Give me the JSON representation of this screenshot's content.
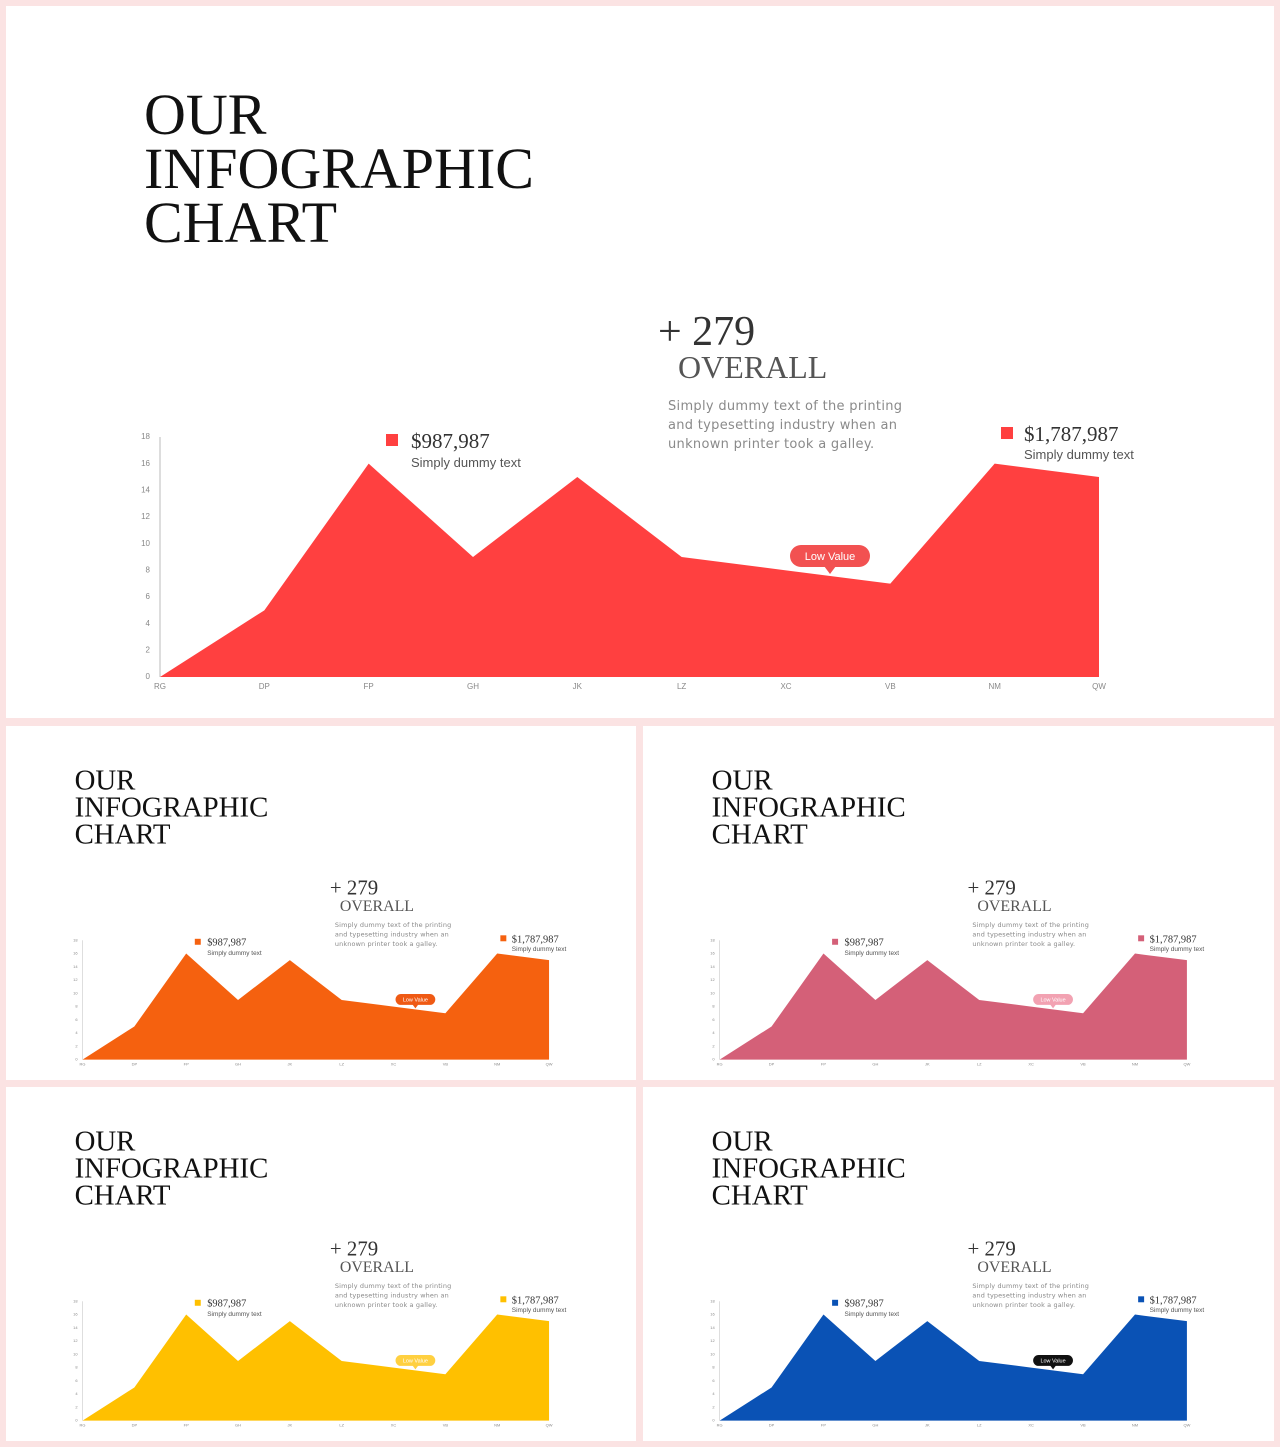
{
  "chart_data": [
    {
      "type": "area",
      "title": "OUR INFOGRAPHIC CHART",
      "headline": "+ 279",
      "subheadline": "OVERALL",
      "description": "Simply dummy text of the printing and typesetting industry when an unknown printer took a galley.",
      "callouts": [
        {
          "value": "$987,987",
          "text": "Simply dummy text"
        },
        {
          "value": "$1,787,987",
          "text": "Simply dummy text"
        }
      ],
      "annotation": "Low Value",
      "annotation_color": "#f25151",
      "categories": [
        "RG",
        "DP",
        "FP",
        "GH",
        "JK",
        "LZ",
        "XC",
        "VB",
        "NM",
        "QW"
      ],
      "values": [
        0,
        5,
        16,
        9,
        15,
        9,
        8,
        7,
        16,
        15
      ],
      "color": "#ff4040",
      "ylim": [
        0,
        18
      ],
      "yticks": [
        0,
        2,
        4,
        6,
        8,
        10,
        12,
        14,
        16,
        18
      ]
    },
    {
      "type": "area",
      "title": "OUR INFOGRAPHIC CHART",
      "headline": "+ 279",
      "subheadline": "OVERALL",
      "description": "Simply dummy text of the printing and typesetting industry when an unknown printer took a galley.",
      "callouts": [
        {
          "value": "$987,987",
          "text": "Simply dummy text"
        },
        {
          "value": "$1,787,987",
          "text": "Simply dummy text"
        }
      ],
      "annotation": "Low Value",
      "annotation_color": "#ef5a14",
      "categories": [
        "RG",
        "DP",
        "FP",
        "GH",
        "JK",
        "LZ",
        "XC",
        "VB",
        "NM",
        "QW"
      ],
      "values": [
        0,
        5,
        16,
        9,
        15,
        9,
        8,
        7,
        16,
        15
      ],
      "color": "#f5610f",
      "ylim": [
        0,
        18
      ],
      "yticks": [
        0,
        2,
        4,
        6,
        8,
        10,
        12,
        14,
        16,
        18
      ]
    },
    {
      "type": "area",
      "title": "OUR INFOGRAPHIC CHART",
      "headline": "+ 279",
      "subheadline": "OVERALL",
      "description": "Simply dummy text of the printing and typesetting industry when an unknown printer took a galley.",
      "callouts": [
        {
          "value": "$987,987",
          "text": "Simply dummy text"
        },
        {
          "value": "$1,787,987",
          "text": "Simply dummy text"
        }
      ],
      "annotation": "Low Value",
      "annotation_color": "#f2a2b2",
      "categories": [
        "RG",
        "DP",
        "FP",
        "GH",
        "JK",
        "LZ",
        "XC",
        "VB",
        "NM",
        "QW"
      ],
      "values": [
        0,
        5,
        16,
        9,
        15,
        9,
        8,
        7,
        16,
        15
      ],
      "color": "#d46078",
      "ylim": [
        0,
        18
      ],
      "yticks": [
        0,
        2,
        4,
        6,
        8,
        10,
        12,
        14,
        16,
        18
      ]
    },
    {
      "type": "area",
      "title": "OUR INFOGRAPHIC CHART",
      "headline": "+ 279",
      "subheadline": "OVERALL",
      "description": "Simply dummy text of the printing and typesetting industry when an unknown printer took a galley.",
      "callouts": [
        {
          "value": "$987,987",
          "text": "Simply dummy text"
        },
        {
          "value": "$1,787,987",
          "text": "Simply dummy text"
        }
      ],
      "annotation": "Low Value",
      "annotation_color": "#ffd040",
      "categories": [
        "RG",
        "DP",
        "FP",
        "GH",
        "JK",
        "LZ",
        "XC",
        "VB",
        "NM",
        "QW"
      ],
      "values": [
        0,
        5,
        16,
        9,
        15,
        9,
        8,
        7,
        16,
        15
      ],
      "color": "#ffc000",
      "ylim": [
        0,
        18
      ],
      "yticks": [
        0,
        2,
        4,
        6,
        8,
        10,
        12,
        14,
        16,
        18
      ]
    },
    {
      "type": "area",
      "title": "OUR INFOGRAPHIC CHART",
      "headline": "+ 279",
      "subheadline": "OVERALL",
      "description": "Simply dummy text of the printing and typesetting industry when an unknown printer took a galley.",
      "callouts": [
        {
          "value": "$987,987",
          "text": "Simply dummy text"
        },
        {
          "value": "$1,787,987",
          "text": "Simply dummy text"
        }
      ],
      "annotation": "Low Value",
      "annotation_color": "#111111",
      "categories": [
        "RG",
        "DP",
        "FP",
        "GH",
        "JK",
        "LZ",
        "XC",
        "VB",
        "NM",
        "QW"
      ],
      "values": [
        0,
        5,
        16,
        9,
        15,
        9,
        8,
        7,
        16,
        15
      ],
      "color": "#0a52b5",
      "ylim": [
        0,
        18
      ],
      "yticks": [
        0,
        2,
        4,
        6,
        8,
        10,
        12,
        14,
        16,
        18
      ]
    }
  ]
}
